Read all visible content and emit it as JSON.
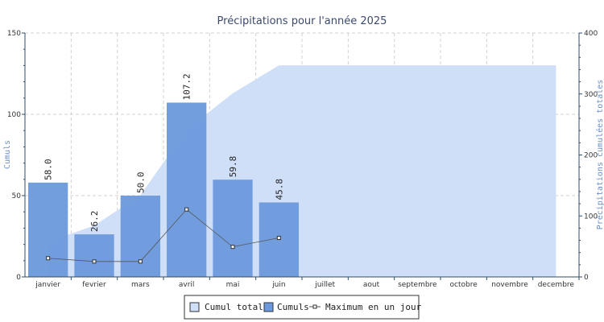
{
  "chart_data": {
    "type": "bar",
    "title": "Précipitations pour l'année 2025",
    "categories": [
      "janvier",
      "fevrier",
      "mars",
      "avril",
      "mai",
      "juin",
      "juillet",
      "aout",
      "septembre",
      "octobre",
      "novembre",
      "decembre"
    ],
    "ylabel": "Cumuls",
    "y2label": "Précipitations cumulées totales",
    "ylim": [
      0,
      150
    ],
    "y2lim": [
      0,
      400
    ],
    "yticks": [
      "0",
      "50",
      "100",
      "150"
    ],
    "y2ticks": [
      "0",
      "100",
      "200",
      "300",
      "400"
    ],
    "grid": true,
    "legend_placement": "bottom-center",
    "series": [
      {
        "name": "Cumul total",
        "type": "area",
        "axis": "right",
        "values": [
          58.0,
          84.2,
          134.2,
          241.4,
          301.2,
          347.0,
          347.0,
          347.0,
          347.0,
          347.0,
          347.0,
          347.0
        ],
        "color": "#d0dff8"
      },
      {
        "name": "Cumuls",
        "type": "bar",
        "axis": "left",
        "values": [
          58.0,
          26.2,
          50.0,
          107.2,
          59.8,
          45.8,
          null,
          null,
          null,
          null,
          null,
          null
        ],
        "labels": [
          "58.0",
          "26.2",
          "50.0",
          "107.2",
          "59.8",
          "45.8"
        ],
        "color": "#6b99dc"
      },
      {
        "name": "Maximum en un jour",
        "type": "line",
        "axis": "left",
        "values": [
          11.5,
          9.5,
          9.5,
          41.5,
          18.5,
          24.0,
          null,
          null,
          null,
          null,
          null,
          null
        ],
        "color": "#555555"
      }
    ]
  }
}
